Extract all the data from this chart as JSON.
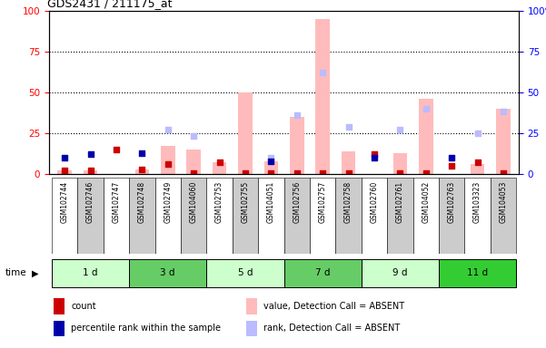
{
  "title": "GDS2431 / 211175_at",
  "samples": [
    "GSM102744",
    "GSM102746",
    "GSM102747",
    "GSM102748",
    "GSM102749",
    "GSM104060",
    "GSM102753",
    "GSM102755",
    "GSM104051",
    "GSM102756",
    "GSM102757",
    "GSM102758",
    "GSM102760",
    "GSM102761",
    "GSM104052",
    "GSM102763",
    "GSM103323",
    "GSM104053"
  ],
  "time_groups": [
    {
      "label": "1 d",
      "start": 0,
      "end": 3,
      "color": "#ccffcc"
    },
    {
      "label": "3 d",
      "start": 3,
      "end": 6,
      "color": "#66cc66"
    },
    {
      "label": "5 d",
      "start": 6,
      "end": 9,
      "color": "#ccffcc"
    },
    {
      "label": "7 d",
      "start": 9,
      "end": 12,
      "color": "#66cc66"
    },
    {
      "label": "9 d",
      "start": 12,
      "end": 15,
      "color": "#ccffcc"
    },
    {
      "label": "11 d",
      "start": 15,
      "end": 18,
      "color": "#33cc33"
    }
  ],
  "count_values": [
    2,
    2,
    15,
    3,
    6,
    0,
    7,
    0,
    0,
    0,
    0,
    0,
    12,
    0,
    0,
    5,
    7,
    0
  ],
  "percentile_rank_values": [
    10,
    12,
    0,
    13,
    0,
    0,
    0,
    0,
    8,
    0,
    0,
    0,
    10,
    0,
    0,
    10,
    0,
    0
  ],
  "absent_value_bars": [
    2,
    2,
    0,
    3,
    17,
    15,
    7,
    50,
    8,
    35,
    95,
    14,
    0,
    13,
    46,
    0,
    6,
    40
  ],
  "absent_rank_squares": [
    0,
    0,
    0,
    0,
    27,
    23,
    0,
    0,
    10,
    36,
    62,
    29,
    0,
    27,
    40,
    0,
    25,
    38
  ],
  "ylim": [
    0,
    100
  ],
  "count_color": "#cc0000",
  "percentile_color": "#0000aa",
  "absent_value_color": "#ffbbbb",
  "absent_rank_color": "#bbbbff",
  "plot_bg": "#ffffff",
  "sample_area_bg": "#cccccc",
  "legend_items": [
    {
      "color": "#cc0000",
      "label": "count"
    },
    {
      "color": "#0000aa",
      "label": "percentile rank within the sample"
    },
    {
      "color": "#ffbbbb",
      "label": "value, Detection Call = ABSENT"
    },
    {
      "color": "#bbbbff",
      "label": "rank, Detection Call = ABSENT"
    }
  ]
}
